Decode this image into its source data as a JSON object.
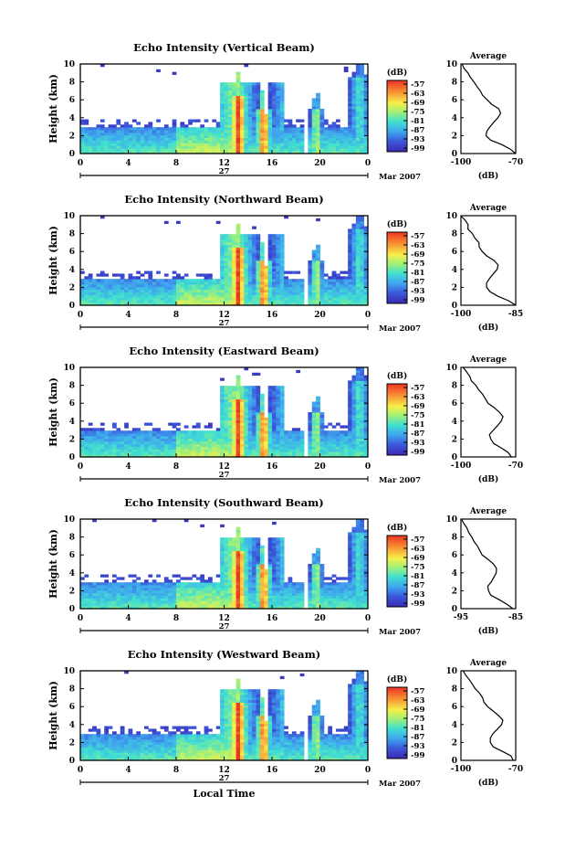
{
  "figure": {
    "xlabel": "Local Time",
    "date_label": "27",
    "month_label": "Mar 2007",
    "colorbar_unit": "(dB)",
    "colorbar_ticks": [
      "-57",
      "-63",
      "-69",
      "-75",
      "-81",
      "-87",
      "-93",
      "-99"
    ],
    "avg_title": "Average",
    "avg_xlabel": "(dB)",
    "panel_ylabel": "Height (km)"
  },
  "chart_data": [
    {
      "type": "heatmap",
      "title": "Echo Intensity (Vertical Beam)",
      "xlabel": "",
      "ylabel": "Height (km)",
      "x_ticks": [
        "0",
        "4",
        "8",
        "12",
        "16",
        "20",
        "0"
      ],
      "xlim": [
        0,
        24
      ],
      "y_ticks": [
        "0",
        "2",
        "4",
        "6",
        "8",
        "10"
      ],
      "ylim": [
        0,
        10
      ],
      "colorbar": {
        "unit": "(dB)",
        "min": -99,
        "max": -57
      },
      "profile": {
        "title": "Average",
        "xlabel": "(dB)",
        "x_ticks": [
          "-100",
          "-70"
        ],
        "xlim": [
          -100,
          -70
        ],
        "heights": [
          0,
          0.5,
          1,
          1.5,
          2,
          2.5,
          3,
          3.5,
          4,
          4.5,
          5,
          5.5,
          6,
          6.5,
          7,
          7.5,
          8,
          8.5,
          9,
          9.5,
          10
        ],
        "values": [
          -70,
          -73,
          -78,
          -84,
          -86,
          -86,
          -84,
          -82,
          -80,
          -78,
          -79,
          -83,
          -86,
          -88,
          -89,
          -91,
          -93,
          -95,
          -96,
          -98,
          -99
        ]
      }
    },
    {
      "type": "heatmap",
      "title": "Echo Intensity (Northward Beam)",
      "xlabel": "",
      "ylabel": "Height (km)",
      "x_ticks": [
        "0",
        "4",
        "8",
        "12",
        "16",
        "20",
        "0"
      ],
      "xlim": [
        0,
        24
      ],
      "y_ticks": [
        "0",
        "2",
        "4",
        "6",
        "8",
        "10"
      ],
      "ylim": [
        0,
        10
      ],
      "colorbar": {
        "unit": "(dB)",
        "min": -99,
        "max": -57
      },
      "profile": {
        "title": "Average",
        "xlabel": "(dB)",
        "x_ticks": [
          "-100",
          "-85"
        ],
        "xlim": [
          -100,
          -85
        ],
        "heights": [
          0,
          0.5,
          1,
          1.5,
          2,
          2.5,
          3,
          3.5,
          4,
          4.5,
          5,
          5.5,
          6,
          6.5,
          7,
          7.5,
          8,
          8.5,
          9,
          9.5,
          10
        ],
        "values": [
          -85,
          -87,
          -90,
          -92,
          -93,
          -93,
          -92,
          -91,
          -90,
          -90,
          -91,
          -93,
          -94,
          -95,
          -95,
          -96,
          -97,
          -98,
          -98,
          -99,
          -100
        ]
      }
    },
    {
      "type": "heatmap",
      "title": "Echo Intensity (Eastward Beam)",
      "xlabel": "",
      "ylabel": "Height (km)",
      "x_ticks": [
        "0",
        "4",
        "8",
        "12",
        "16",
        "20",
        "0"
      ],
      "xlim": [
        0,
        24
      ],
      "y_ticks": [
        "0",
        "2",
        "4",
        "6",
        "8",
        "10"
      ],
      "ylim": [
        0,
        10
      ],
      "colorbar": {
        "unit": "(dB)",
        "min": -99,
        "max": -57
      },
      "profile": {
        "title": "Average",
        "xlabel": "(dB)",
        "x_ticks": [
          "-100",
          "-70"
        ],
        "xlim": [
          -100,
          -70
        ],
        "heights": [
          0,
          0.5,
          1,
          1.5,
          2,
          2.5,
          3,
          3.5,
          4,
          4.5,
          5,
          5.5,
          6,
          6.5,
          7,
          7.5,
          8,
          8.5,
          9,
          9.5,
          10
        ],
        "values": [
          -72,
          -74,
          -78,
          -82,
          -84,
          -84,
          -82,
          -80,
          -78,
          -77,
          -79,
          -82,
          -85,
          -87,
          -88,
          -90,
          -92,
          -94,
          -95,
          -97,
          -99
        ]
      }
    },
    {
      "type": "heatmap",
      "title": "Echo Intensity (Southward Beam)",
      "xlabel": "",
      "ylabel": "Height (km)",
      "x_ticks": [
        "0",
        "4",
        "8",
        "12",
        "16",
        "20",
        "0"
      ],
      "xlim": [
        0,
        24
      ],
      "y_ticks": [
        "0",
        "2",
        "4",
        "6",
        "8",
        "10"
      ],
      "ylim": [
        0,
        10
      ],
      "colorbar": {
        "unit": "(dB)",
        "min": -99,
        "max": -57
      },
      "profile": {
        "title": "Average",
        "xlabel": "(dB)",
        "x_ticks": [
          "-95",
          "-85"
        ],
        "xlim": [
          -95,
          -85
        ],
        "heights": [
          0,
          0.5,
          1,
          1.5,
          2,
          2.5,
          3,
          3.5,
          4,
          4.5,
          5,
          5.5,
          6,
          6.5,
          7,
          7.5,
          8,
          8.5,
          9,
          9.5,
          10
        ],
        "values": [
          -85.5,
          -86.5,
          -88,
          -89.5,
          -90,
          -90,
          -89.5,
          -89,
          -88.5,
          -88.5,
          -89,
          -90,
          -91,
          -91.5,
          -92,
          -92.5,
          -93,
          -93.5,
          -94,
          -94.5,
          -95
        ]
      }
    },
    {
      "type": "heatmap",
      "title": "Echo Intensity (Westward Beam)",
      "xlabel": "Local Time",
      "ylabel": "Height (km)",
      "x_ticks": [
        "0",
        "4",
        "8",
        "12",
        "16",
        "20",
        "0"
      ],
      "xlim": [
        0,
        24
      ],
      "y_ticks": [
        "0",
        "2",
        "4",
        "6",
        "8",
        "10"
      ],
      "ylim": [
        0,
        10
      ],
      "colorbar": {
        "unit": "(dB)",
        "min": -99,
        "max": -57
      },
      "profile": {
        "title": "Average",
        "xlabel": "(dB)",
        "x_ticks": [
          "-100",
          "-70"
        ],
        "xlim": [
          -100,
          -70
        ],
        "heights": [
          0,
          0.5,
          1,
          1.5,
          2,
          2.5,
          3,
          3.5,
          4,
          4.5,
          5,
          5.5,
          6,
          6.5,
          7,
          7.5,
          8,
          8.5,
          9,
          9.5,
          10
        ],
        "values": [
          -71,
          -73,
          -77,
          -82,
          -84,
          -84,
          -82,
          -80,
          -78,
          -77,
          -79,
          -82,
          -85,
          -87,
          -88,
          -90,
          -92,
          -94,
          -95,
          -97,
          -99
        ]
      }
    }
  ]
}
